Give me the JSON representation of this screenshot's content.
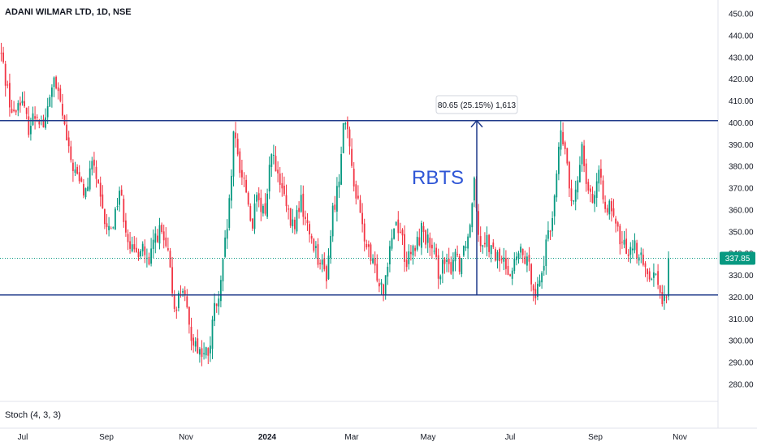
{
  "header": {
    "title": "ADANI WILMAR LTD, 1D, NSE"
  },
  "indicator": {
    "label": "Stoch (4, 3, 3)"
  },
  "chart_data": {
    "type": "candlestick",
    "ylim": [
      271,
      455
    ],
    "y_ticks": [
      "450.00",
      "440.00",
      "430.00",
      "420.00",
      "410.00",
      "400.00",
      "390.00",
      "380.00",
      "370.00",
      "360.00",
      "350.00",
      "340.00",
      "330.00",
      "320.00",
      "310.00",
      "300.00",
      "290.00",
      "280.00"
    ],
    "x_labels": [
      "Jul",
      "Sep",
      "Nov",
      "2024",
      "Mar",
      "May",
      "Jul",
      "Sep",
      "Nov"
    ],
    "last_price": "337.85",
    "horizontal_lines": [
      401,
      321
    ],
    "annotation_text": "RBTS",
    "measure": {
      "label": "80.65 (25.15%) 1,613",
      "from": 321,
      "to": 401
    },
    "path": [
      [
        0,
        434
      ],
      [
        8,
        418
      ],
      [
        16,
        402
      ],
      [
        25,
        412
      ],
      [
        35,
        398
      ],
      [
        45,
        405
      ],
      [
        55,
        398
      ],
      [
        65,
        420
      ],
      [
        75,
        408
      ],
      [
        85,
        385
      ],
      [
        95,
        375
      ],
      [
        105,
        367
      ],
      [
        115,
        383
      ],
      [
        125,
        360
      ],
      [
        132,
        350
      ],
      [
        140,
        355
      ],
      [
        147,
        370
      ],
      [
        155,
        352
      ],
      [
        165,
        338
      ],
      [
        175,
        345
      ],
      [
        183,
        332
      ],
      [
        190,
        348
      ],
      [
        198,
        350
      ],
      [
        207,
        338
      ],
      [
        215,
        315
      ],
      [
        225,
        325
      ],
      [
        233,
        305
      ],
      [
        242,
        298
      ],
      [
        250,
        293
      ],
      [
        258,
        295
      ],
      [
        264,
        315
      ],
      [
        270,
        318
      ],
      [
        276,
        340
      ],
      [
        282,
        360
      ],
      [
        288,
        395
      ],
      [
        295,
        380
      ],
      [
        302,
        372
      ],
      [
        310,
        352
      ],
      [
        316,
        365
      ],
      [
        322,
        358
      ],
      [
        328,
        362
      ],
      [
        334,
        390
      ],
      [
        340,
        376
      ],
      [
        348,
        368
      ],
      [
        356,
        355
      ],
      [
        362,
        352
      ],
      [
        370,
        365
      ],
      [
        378,
        352
      ],
      [
        386,
        345
      ],
      [
        394,
        336
      ],
      [
        402,
        330
      ],
      [
        410,
        360
      ],
      [
        417,
        372
      ],
      [
        423,
        405
      ],
      [
        430,
        388
      ],
      [
        438,
        368
      ],
      [
        446,
        352
      ],
      [
        452,
        342
      ],
      [
        458,
        335
      ],
      [
        465,
        330
      ],
      [
        472,
        324
      ],
      [
        480,
        345
      ],
      [
        487,
        355
      ],
      [
        494,
        350
      ],
      [
        500,
        335
      ],
      [
        507,
        340
      ],
      [
        514,
        345
      ],
      [
        520,
        352
      ],
      [
        527,
        345
      ],
      [
        534,
        338
      ],
      [
        540,
        332
      ],
      [
        547,
        335
      ],
      [
        554,
        332
      ],
      [
        560,
        342
      ],
      [
        566,
        335
      ],
      [
        572,
        345
      ],
      [
        578,
        350
      ],
      [
        584,
        378
      ],
      [
        590,
        345
      ],
      [
        598,
        348
      ],
      [
        606,
        340
      ],
      [
        614,
        338
      ],
      [
        622,
        335
      ],
      [
        630,
        332
      ],
      [
        638,
        340
      ],
      [
        646,
        338
      ],
      [
        654,
        330
      ],
      [
        660,
        322
      ],
      [
        666,
        330
      ],
      [
        672,
        342
      ],
      [
        678,
        352
      ],
      [
        684,
        372
      ],
      [
        690,
        395
      ],
      [
        697,
        385
      ],
      [
        704,
        360
      ],
      [
        710,
        368
      ],
      [
        716,
        392
      ],
      [
        723,
        372
      ],
      [
        730,
        365
      ],
      [
        737,
        375
      ],
      [
        744,
        365
      ],
      [
        751,
        360
      ],
      [
        758,
        352
      ],
      [
        765,
        345
      ],
      [
        772,
        342
      ],
      [
        779,
        345
      ],
      [
        786,
        340
      ],
      [
        793,
        333
      ],
      [
        800,
        332
      ],
      [
        807,
        330
      ],
      [
        814,
        322
      ],
      [
        820,
        315
      ],
      [
        824,
        337.85
      ]
    ]
  }
}
